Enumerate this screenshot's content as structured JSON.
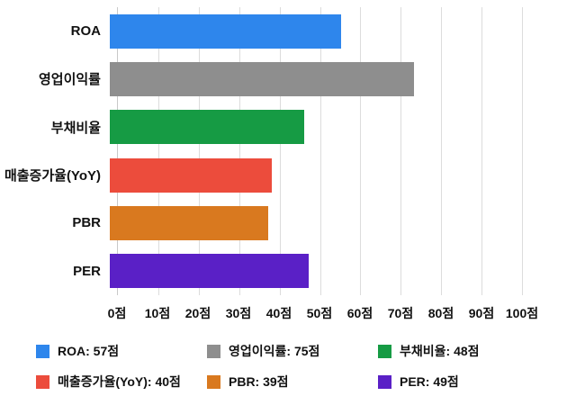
{
  "chart_data": {
    "type": "bar",
    "orientation": "horizontal",
    "title": "",
    "xlabel": "",
    "ylabel": "",
    "categories": [
      "ROA",
      "영업이익률",
      "부채비율",
      "매출증가율(YoY)",
      "PBR",
      "PER"
    ],
    "values": [
      57,
      75,
      48,
      40,
      39,
      49
    ],
    "colors": [
      "#2E86EC",
      "#8E8E8E",
      "#169B44",
      "#EC4C3C",
      "#D9791F",
      "#5A20C6"
    ],
    "xlim": [
      0,
      100
    ],
    "x_tick_step": 10,
    "x_ticks": [
      "0점",
      "10점",
      "20점",
      "30점",
      "40점",
      "50점",
      "60점",
      "70점",
      "80점",
      "90점",
      "100점"
    ],
    "grid": true,
    "legend_position": "bottom",
    "legend": [
      {
        "label": "ROA: 57점",
        "color": "#2E86EC"
      },
      {
        "label": "영업이익률: 75점",
        "color": "#8E8E8E"
      },
      {
        "label": "부채비율: 48점",
        "color": "#169B44"
      },
      {
        "label": "매출증가율(YoY): 40점",
        "color": "#EC4C3C"
      },
      {
        "label": "PBR: 39점",
        "color": "#D9791F"
      },
      {
        "label": "PER: 49점",
        "color": "#5A20C6"
      }
    ]
  }
}
